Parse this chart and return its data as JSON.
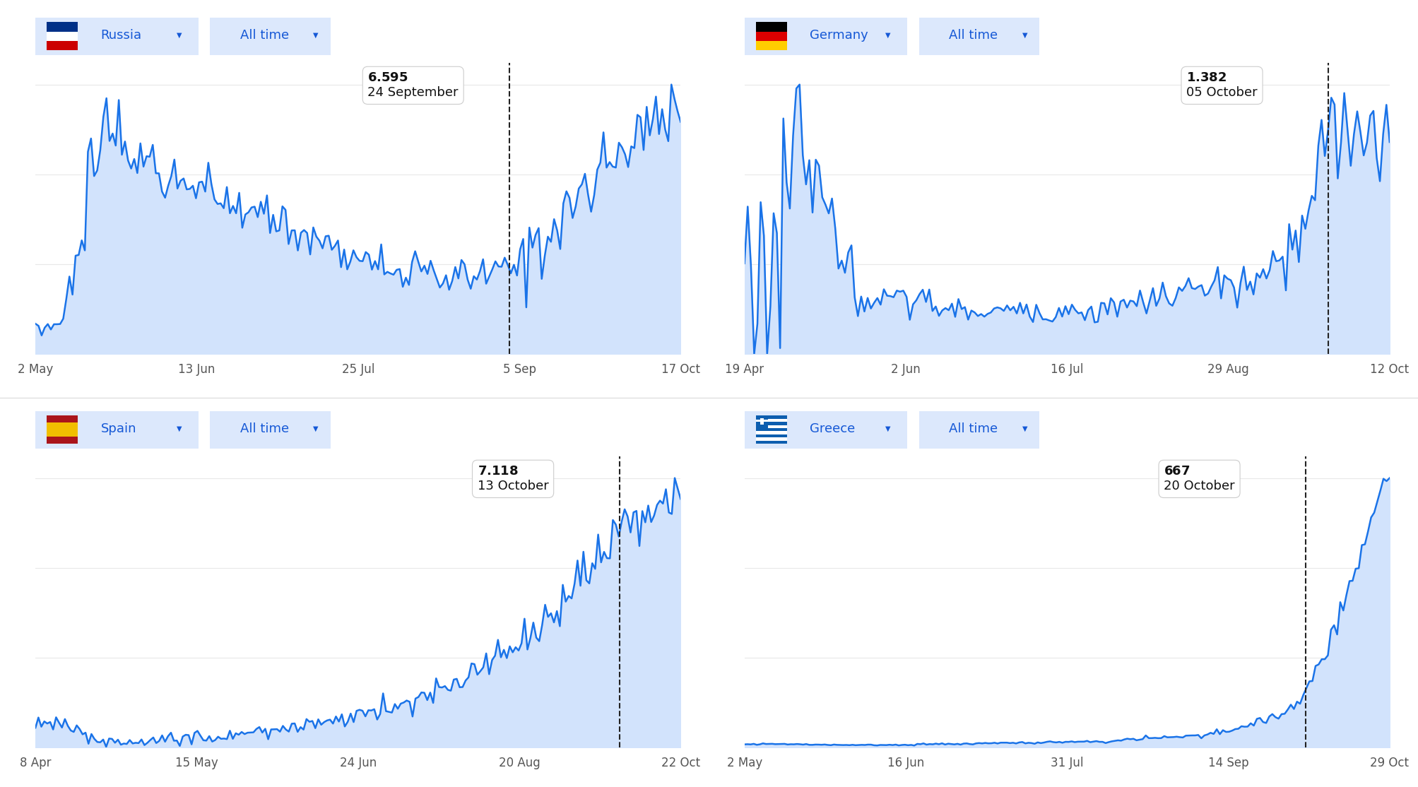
{
  "background_color": "#ffffff",
  "line_color": "#1a73e8",
  "fill_color": "#d2e3fc",
  "grid_color": "#e8e8e8",
  "dashed_line_color": "#222222",
  "panels": [
    {
      "country": "Russia",
      "flag_type": "russia",
      "x_labels": [
        "2 May",
        "13 Jun",
        "25 Jul",
        "5 Sep",
        "17 Oct"
      ],
      "tooltip_value": "6.595",
      "tooltip_date": "24 September",
      "vline_pos": 0.735
    },
    {
      "country": "Germany",
      "flag_type": "germany",
      "x_labels": [
        "19 Apr",
        "2 Jun",
        "16 Jul",
        "29 Aug",
        "12 Oct"
      ],
      "tooltip_value": "1.382",
      "tooltip_date": "05 October",
      "vline_pos": 0.905
    },
    {
      "country": "Spain",
      "flag_type": "spain",
      "x_labels": [
        "8 Apr",
        "15 May",
        "24 Jun",
        "20 Aug",
        "22 Oct"
      ],
      "tooltip_value": "7.118",
      "tooltip_date": "13 October",
      "vline_pos": 0.905
    },
    {
      "country": "Greece",
      "flag_type": "greece",
      "x_labels": [
        "2 May",
        "16 Jun",
        "31 Jul",
        "14 Sep",
        "29 Oct"
      ],
      "tooltip_value": "667",
      "tooltip_date": "20 October",
      "vline_pos": 0.87
    }
  ]
}
